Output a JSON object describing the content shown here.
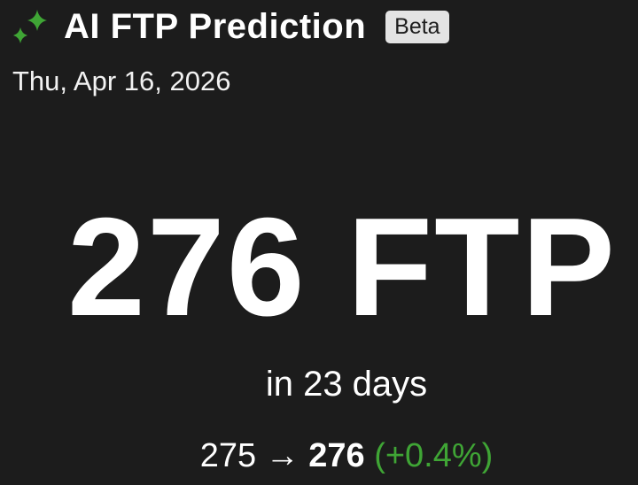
{
  "header": {
    "icon": "sparkle-icon",
    "title": "AI FTP Prediction",
    "badge": "Beta"
  },
  "date": "Thu, Apr 16, 2026",
  "prediction": {
    "value_label": "276 FTP",
    "timeframe": "in 23 days"
  },
  "change": {
    "current": "275",
    "arrow": "→",
    "predicted": "276",
    "percent": "(+0.4%)"
  },
  "colors": {
    "background": "#1c1c1c",
    "accent": "#3fa535",
    "badge": "#e3e3e3"
  }
}
